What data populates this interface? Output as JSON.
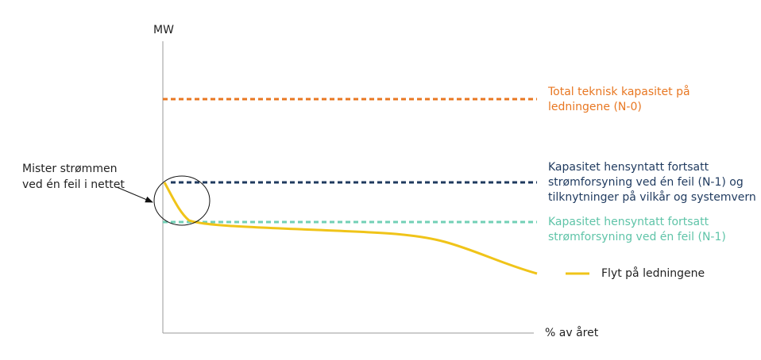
{
  "axes": {
    "y_label": "MW",
    "x_label": "% av året"
  },
  "reference_lines": [
    {
      "label_lines": [
        "Total teknisk kapasitet på",
        "ledningene  (N-0)"
      ]
    },
    {
      "label_lines": [
        "Kapasitet hensyntatt fortsatt",
        "strømforsyning ved én feil (N-1) og",
        "tilknytninger på vilkår og systemvern"
      ]
    },
    {
      "label_lines": [
        "Kapasitet hensyntatt fortsatt",
        "strømforsyning ved én feil (N-1)"
      ]
    }
  ],
  "annotation": {
    "lines": [
      "Mister strømmen",
      "ved én feil i nettet"
    ]
  },
  "legend": {
    "label": "Flyt på ledningene"
  }
}
